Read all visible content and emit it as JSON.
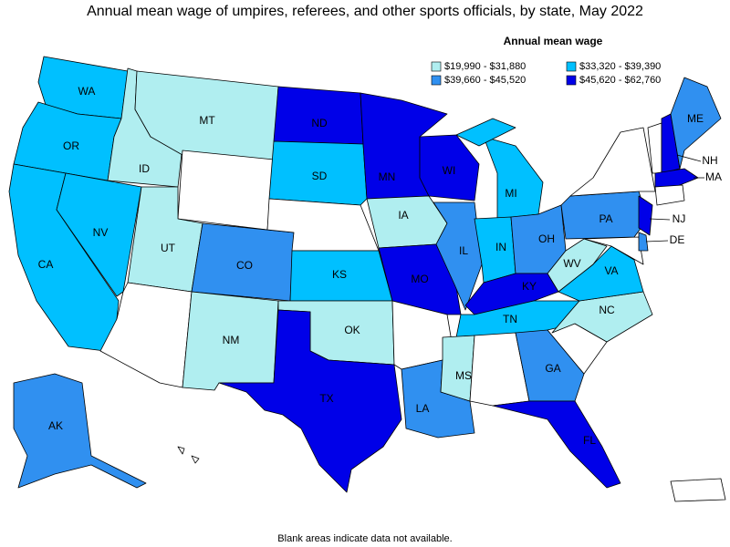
{
  "title": "Annual mean wage of umpires, referees, and other sports officials, by state, May 2022",
  "legend": {
    "title": "Annual mean wage",
    "items": [
      {
        "label": "$19,990 - $31,880",
        "color": "#b0eef0",
        "states": [
          "MT",
          "ID",
          "UT",
          "NM",
          "IA",
          "OK",
          "MS",
          "WV",
          "NC"
        ]
      },
      {
        "label": "$33,320 - $39,390",
        "color": "#00c0ff",
        "states": [
          "WA",
          "OR",
          "CA",
          "NV",
          "SD",
          "KS",
          "MI",
          "IN",
          "TN",
          "VA"
        ]
      },
      {
        "label": "$39,660 - $45,520",
        "color": "#3090f0",
        "states": [
          "AK",
          "CO",
          "IL",
          "OH",
          "PA",
          "ME",
          "GA",
          "LA",
          "DE"
        ]
      },
      {
        "label": "$45,620 - $62,760",
        "color": "#0000e8",
        "states": [
          "ND",
          "MN",
          "WI",
          "MO",
          "KY",
          "TX",
          "FL",
          "NH",
          "NJ",
          "MA"
        ]
      }
    ]
  },
  "note": "Blank areas indicate data not available."
}
